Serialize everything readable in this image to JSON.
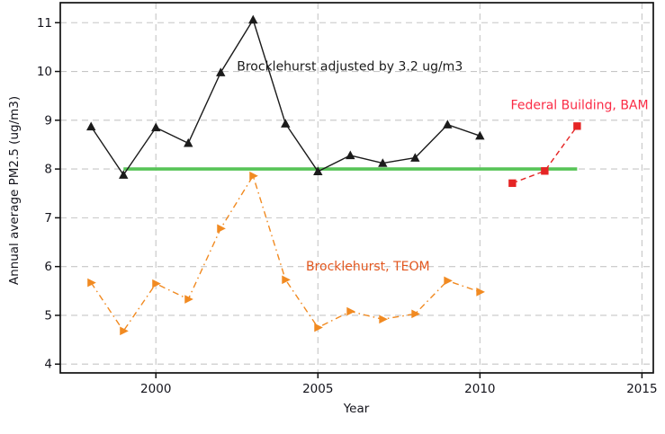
{
  "chart_data": {
    "type": "line",
    "title": "",
    "xlabel": "Year",
    "ylabel": "Annual average PM2.5 (ug/m3)",
    "xlim": [
      1997.05,
      2015.35
    ],
    "ylim": [
      3.82,
      11.41
    ],
    "x_ticks": [
      2000,
      2005,
      2010,
      2015
    ],
    "y_ticks": [
      4,
      5,
      6,
      7,
      8,
      9,
      10,
      11
    ],
    "grid": true,
    "legend_position": "inline-annotations",
    "series": [
      {
        "name": "Brocklehurst adjusted by 3.2 ug/m3",
        "marker": "triangle-up",
        "line_style": "solid",
        "color": "#1b1b1b",
        "x": [
          1998,
          1999,
          2000,
          2001,
          2002,
          2003,
          2004,
          2005,
          2006,
          2007,
          2008,
          2009,
          2010
        ],
        "values": [
          8.87,
          7.88,
          8.85,
          8.53,
          9.98,
          11.06,
          8.93,
          7.95,
          8.28,
          8.12,
          8.23,
          8.91,
          8.68
        ]
      },
      {
        "name": "Brocklehurst, TEOM",
        "marker": "triangle-right",
        "line_style": "dash-dot",
        "color": "#F18A21",
        "x": [
          1998,
          1999,
          2000,
          2001,
          2002,
          2003,
          2004,
          2005,
          2006,
          2007,
          2008,
          2009,
          2010
        ],
        "values": [
          5.67,
          4.68,
          5.65,
          5.33,
          6.78,
          7.86,
          5.73,
          4.75,
          5.08,
          4.92,
          5.03,
          5.71,
          5.48
        ]
      },
      {
        "name": "Federal Building, BAM",
        "marker": "square",
        "line_style": "dashed",
        "color": "#E52525",
        "x": [
          2011,
          2012,
          2013
        ],
        "values": [
          7.71,
          7.96,
          8.88
        ]
      }
    ],
    "reference_line": {
      "y": 8,
      "x_start": 1999,
      "x_end": 2013,
      "color": "#57C457"
    },
    "annotations": [
      {
        "text": "Brocklehurst adjusted by 3.2 ug/m3",
        "x": 2002.5,
        "y": 10.1,
        "color": "#1b1b1b"
      },
      {
        "text": "Federal Building, BAM",
        "x": 2010.95,
        "y": 9.31,
        "color": "#FB2B45"
      },
      {
        "text": "Brocklehurst, TEOM",
        "x": 2004.63,
        "y": 6.0,
        "color": "#E2571F"
      }
    ],
    "style": {
      "grid_color": "#c6c6c6",
      "border_color": "#111111",
      "tick_label_color": "#14141c"
    }
  }
}
